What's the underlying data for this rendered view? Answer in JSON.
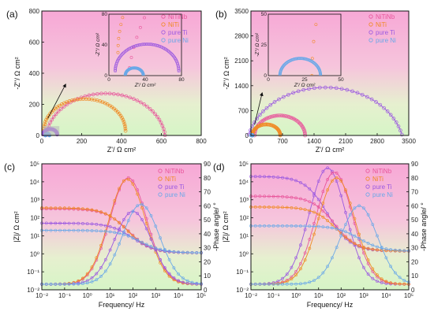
{
  "colors": {
    "NiTiNb": "#e8559b",
    "NiTi": "#f08a24",
    "pure Ti": "#9b59e0",
    "pure Ni": "#6aa8e8",
    "bg_top": "#f7a8d6",
    "bg_bottom": "#d9f5c9"
  },
  "chart_data": [
    {
      "id": "a",
      "type": "scatter",
      "panel_label": "(a)",
      "xlabel": "Z'/ Ω cm²",
      "ylabel": "-Z''/ Ω cm²",
      "xlim": [
        0,
        800
      ],
      "ylim": [
        0,
        800
      ],
      "xticks": [
        "0",
        "200",
        "400",
        "600",
        "800"
      ],
      "yticks": [
        "0",
        "200",
        "400",
        "600",
        "800"
      ],
      "legend": [
        "NiTiNb",
        "NiTi",
        "pure Ti",
        "pure Ni"
      ],
      "legend_position": "top-right",
      "series": [
        {
          "name": "NiTiNb",
          "center": [
            320,
            -30
          ],
          "radius": 300
        },
        {
          "name": "NiTi",
          "center": [
            215,
            30
          ],
          "radius": 205
        },
        {
          "name": "pure Ti",
          "center": [
            42,
            6
          ],
          "radius": 35
        },
        {
          "name": "pure Ni",
          "center": [
            28,
            0
          ],
          "radius": 10
        }
      ],
      "inset": {
        "xlim": [
          0,
          80
        ],
        "ylim": [
          0,
          80
        ],
        "xticks": [
          "0",
          "40",
          "80"
        ],
        "yticks": [
          "0",
          "40",
          "80"
        ],
        "xlabel": "Z'/ Ω cm²",
        "ylabel": "-Z''/ Ω cm²"
      }
    },
    {
      "id": "b",
      "type": "scatter",
      "panel_label": "(b)",
      "xlabel": "Z'/ Ω cm²",
      "ylabel": "-Z''/ Ω cm²",
      "xlim": [
        0,
        3500
      ],
      "ylim": [
        0,
        3500
      ],
      "xticks": [
        "0",
        "700",
        "1400",
        "2100",
        "2800",
        "3500"
      ],
      "yticks": [
        "0",
        "700",
        "1400",
        "2100",
        "2800",
        "3500"
      ],
      "legend": [
        "NiTiNb",
        "NiTi",
        "pure Ti",
        "pure Ni"
      ],
      "legend_position": "top-right",
      "series": [
        {
          "name": "pure Ti",
          "center": [
            1650,
            -400
          ],
          "radius": 1750
        },
        {
          "name": "NiTiNb",
          "center": [
            640,
            0
          ],
          "radius": 560
        },
        {
          "name": "NiTi",
          "center": [
            340,
            0
          ],
          "radius": 310
        },
        {
          "name": "pure Ni",
          "center": [
            22,
            0
          ],
          "radius": 14
        }
      ],
      "inset": {
        "xlim": [
          0,
          50
        ],
        "ylim": [
          0,
          50
        ],
        "xticks": [
          "0",
          "25",
          "50"
        ],
        "yticks": [
          "0",
          "25",
          "50"
        ],
        "xlabel": "Z'/ Ω cm²",
        "ylabel": "-Z''/ Ω cm²"
      }
    },
    {
      "id": "c",
      "type": "line",
      "panel_label": "(c)",
      "xlabel": "Frequency/ Hz",
      "ylabel": "|Z|/ Ω cm²",
      "ylabel_right": "-Phase angle/ °",
      "xscale": "log",
      "yscale": "log",
      "xlim": [
        -2,
        5
      ],
      "ylim": [
        -2,
        5
      ],
      "ylim_right": [
        0,
        90
      ],
      "xticks": [
        "10⁻²",
        "10⁻¹",
        "10⁰",
        "10¹",
        "10²",
        "10³",
        "10⁴",
        "10⁵"
      ],
      "yticks": [
        "10⁻²",
        "10⁻¹",
        "10⁰",
        "10¹",
        "10²",
        "10³",
        "10⁴",
        "10⁵"
      ],
      "yticks_right": [
        "0",
        "10",
        "20",
        "30",
        "40",
        "50",
        "60",
        "70",
        "80",
        "90"
      ],
      "legend": [
        "NiTiNb",
        "NiTi",
        "pure Ti",
        "pure Ni"
      ],
      "legend_position": "top-right",
      "series": [
        {
          "name": "NiTiNb",
          "logZ_low": 2.5,
          "logZ_high": 0.05,
          "phase_peak": 76,
          "peak_logf": 1.8
        },
        {
          "name": "NiTi",
          "logZ_low": 2.55,
          "logZ_high": 0.05,
          "phase_peak": 75,
          "peak_logf": 1.75
        },
        {
          "name": "pure Ti",
          "logZ_low": 1.7,
          "logZ_high": 0.05,
          "phase_peak": 52,
          "peak_logf": 2.0
        },
        {
          "name": "pure Ni",
          "logZ_low": 1.3,
          "logZ_high": 0.05,
          "phase_peak": 57,
          "peak_logf": 2.35
        }
      ]
    },
    {
      "id": "d",
      "type": "line",
      "panel_label": "(d)",
      "xlabel": "Frequency/ Hz",
      "ylabel": "|Z|/ Ω cm²",
      "ylabel_right": "-Phase angle/ °",
      "xscale": "log",
      "yscale": "log",
      "xlim": [
        -2,
        5
      ],
      "ylim": [
        -2,
        5
      ],
      "ylim_right": [
        0,
        90
      ],
      "xticks": [
        "10⁻²",
        "10⁻¹",
        "10⁰",
        "10¹",
        "10²",
        "10³",
        "10⁴",
        "10⁵"
      ],
      "yticks": [
        "10⁻²",
        "10⁻¹",
        "10⁰",
        "10¹",
        "10²",
        "10³",
        "10⁴",
        "10⁵"
      ],
      "yticks_right": [
        "0",
        "10",
        "20",
        "30",
        "40",
        "50",
        "60",
        "70",
        "80",
        "90"
      ],
      "legend": [
        "NiTiNb",
        "NiTi",
        "pure Ti",
        "pure Ni"
      ],
      "legend_position": "top-right",
      "series": [
        {
          "name": "pure Ti",
          "logZ_low": 4.3,
          "logZ_high": 0.15,
          "phase_peak": 83,
          "peak_logf": 1.4
        },
        {
          "name": "NiTiNb",
          "logZ_low": 3.2,
          "logZ_high": 0.15,
          "phase_peak": 80,
          "peak_logf": 1.7
        },
        {
          "name": "NiTi",
          "logZ_low": 2.6,
          "logZ_high": 0.15,
          "phase_peak": 76,
          "peak_logf": 1.8
        },
        {
          "name": "pure Ni",
          "logZ_low": 1.55,
          "logZ_high": 0.15,
          "phase_peak": 56,
          "peak_logf": 2.8
        }
      ]
    }
  ]
}
